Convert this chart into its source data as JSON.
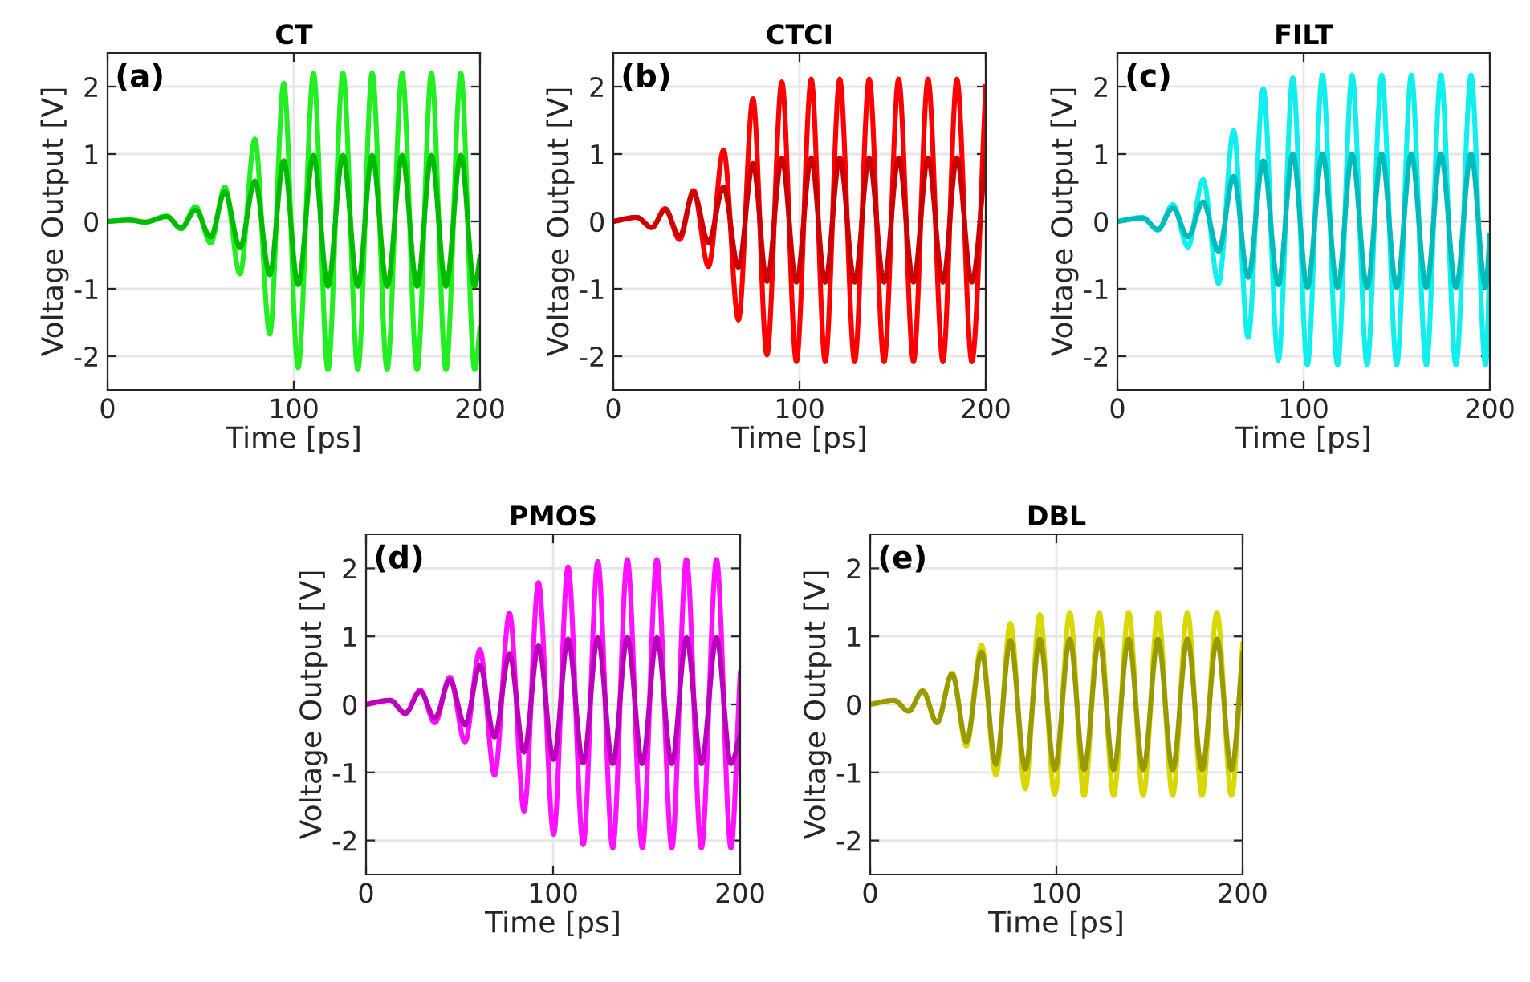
{
  "chart_data": [
    {
      "type": "line",
      "title": "CT",
      "xlabel": "Time [ps]",
      "ylabel": "Voltage Output [V]",
      "annotations": [
        "(a)"
      ],
      "xlim": [
        0,
        200
      ],
      "xticks": [
        0,
        100,
        200
      ],
      "ylim": [
        -2.5,
        2.5
      ],
      "yticks": [
        -2,
        -1,
        0,
        1,
        2
      ],
      "grid": true,
      "x": [
        0,
        12,
        20,
        31.8,
        39.5,
        47.3,
        55.3,
        63.0,
        71.1,
        79.1,
        87.1,
        94.6,
        102.3,
        110.6,
        118.3,
        126.4,
        134.4,
        142.1,
        150.1,
        158.2,
        166.2,
        173.9,
        181.7,
        189.7,
        197.1,
        200
      ],
      "series": [
        {
          "color": "#22ee22",
          "values": [
            0,
            0.02,
            -0.01,
            0.08,
            -0.11,
            0.22,
            -0.32,
            0.51,
            -0.78,
            1.22,
            -1.67,
            2.05,
            -2.17,
            2.2,
            -2.2,
            2.2,
            -2.2,
            2.2,
            -2.2,
            2.2,
            -2.2,
            2.2,
            -2.2,
            2.2,
            -2.2,
            -1.58
          ]
        },
        {
          "color": "#00bb00",
          "values": [
            0,
            0.02,
            -0.01,
            0.07,
            -0.1,
            0.17,
            -0.23,
            0.44,
            -0.39,
            0.6,
            -0.79,
            0.9,
            -0.94,
            0.98,
            -0.96,
            0.98,
            -0.96,
            0.98,
            -0.96,
            0.98,
            -0.96,
            0.98,
            -0.96,
            0.98,
            -0.96,
            -0.52
          ]
        }
      ]
    },
    {
      "type": "line",
      "title": "CTCI",
      "xlabel": "Time [ps]",
      "ylabel": "Voltage Output [V]",
      "annotations": [
        "(b)"
      ],
      "xlim": [
        0,
        200
      ],
      "xticks": [
        0,
        100,
        200
      ],
      "ylim": [
        -2.5,
        2.5
      ],
      "yticks": [
        -2,
        -1,
        0,
        1,
        2
      ],
      "grid": true,
      "x": [
        0,
        12.6,
        20.7,
        27.9,
        35.6,
        43.1,
        51.1,
        59.2,
        67.2,
        75.0,
        82.5,
        90.5,
        98.3,
        106.3,
        113.8,
        121.6,
        129.6,
        137.4,
        145.4,
        153.2,
        161.2,
        169.0,
        177.0,
        184.5,
        192.5,
        200
      ],
      "series": [
        {
          "color": "#ff0000",
          "values": [
            0,
            0.06,
            -0.09,
            0.19,
            -0.27,
            0.46,
            -0.67,
            1.06,
            -1.46,
            1.82,
            -1.98,
            2.07,
            -2.08,
            2.11,
            -2.08,
            2.11,
            -2.08,
            2.11,
            -2.08,
            2.11,
            -2.08,
            2.11,
            -2.08,
            2.11,
            -2.08,
            2.0
          ]
        },
        {
          "color": "#cc0000",
          "values": [
            0,
            0.06,
            -0.09,
            0.17,
            -0.22,
            0.43,
            -0.31,
            0.51,
            -0.68,
            0.86,
            -0.89,
            0.94,
            -0.9,
            0.94,
            -0.9,
            0.94,
            -0.9,
            0.94,
            -0.9,
            0.94,
            -0.9,
            0.94,
            -0.9,
            0.94,
            -0.9,
            0.96
          ]
        }
      ]
    },
    {
      "type": "line",
      "title": "FILT",
      "xlabel": "Time [ps]",
      "ylabel": "Voltage Output [V]",
      "annotations": [
        "(c)"
      ],
      "xlim": [
        0,
        200
      ],
      "xticks": [
        0,
        100,
        200
      ],
      "ylim": [
        -2.5,
        2.5
      ],
      "yticks": [
        -2,
        -1,
        0,
        1,
        2
      ],
      "grid": true,
      "x": [
        0,
        13.6,
        21.7,
        29.8,
        37.9,
        46.0,
        54.3,
        62.4,
        70.2,
        78.3,
        86.4,
        94.2,
        102.0,
        110.1,
        118.2,
        126.0,
        134.1,
        141.9,
        150.0,
        157.8,
        165.9,
        173.7,
        181.8,
        189.9,
        197.7,
        200
      ],
      "series": [
        {
          "color": "#11eeee",
          "values": [
            0,
            0.06,
            -0.13,
            0.25,
            -0.38,
            0.62,
            -0.92,
            1.35,
            -1.72,
            1.97,
            -2.06,
            2.13,
            -2.13,
            2.17,
            -2.13,
            2.17,
            -2.13,
            2.17,
            -2.13,
            2.17,
            -2.13,
            2.17,
            -2.13,
            2.17,
            -2.13,
            -0.59
          ]
        },
        {
          "color": "#00bbbb",
          "values": [
            0,
            0.05,
            -0.12,
            0.2,
            -0.23,
            0.29,
            -0.44,
            0.67,
            -0.83,
            0.9,
            -0.94,
            1.0,
            -0.98,
            1.0,
            -0.98,
            1.0,
            -0.98,
            1.0,
            -0.98,
            1.0,
            -0.98,
            1.0,
            -0.98,
            1.0,
            -0.98,
            -0.21
          ]
        }
      ]
    },
    {
      "type": "line",
      "title": "PMOS",
      "xlabel": "Time [ps]",
      "ylabel": "Voltage Output [V]",
      "annotations": [
        "(d)"
      ],
      "xlim": [
        0,
        200
      ],
      "xticks": [
        0,
        100,
        200
      ],
      "ylim": [
        -2.5,
        2.5
      ],
      "yticks": [
        -2,
        -1,
        0,
        1,
        2
      ],
      "grid": true,
      "x": [
        0,
        12.9,
        21.0,
        29.0,
        36.8,
        44.8,
        52.9,
        60.9,
        68.7,
        76.7,
        84.5,
        92.2,
        100.3,
        108.0,
        116.1,
        123.9,
        131.9,
        139.7,
        147.7,
        155.5,
        163.5,
        171.3,
        179.3,
        187.4,
        195.1,
        200
      ],
      "series": [
        {
          "color": "#ff11ff",
          "values": [
            0,
            0.06,
            -0.13,
            0.21,
            -0.27,
            0.4,
            -0.55,
            0.8,
            -1.04,
            1.34,
            -1.57,
            1.79,
            -1.91,
            2.02,
            -2.06,
            2.1,
            -2.11,
            2.13,
            -2.11,
            2.13,
            -2.11,
            2.13,
            -2.11,
            2.13,
            -2.11,
            0.46
          ]
        },
        {
          "color": "#bb00bb",
          "values": [
            0,
            0.06,
            -0.13,
            0.19,
            -0.2,
            0.36,
            -0.3,
            0.57,
            -0.48,
            0.74,
            -0.7,
            0.86,
            -0.81,
            0.96,
            -0.86,
            0.98,
            -0.87,
            0.98,
            -0.87,
            0.98,
            -0.87,
            0.98,
            -0.87,
            0.98,
            -0.87,
            -0.45
          ]
        }
      ]
    },
    {
      "type": "line",
      "title": "DBL",
      "xlabel": "Time [ps]",
      "ylabel": "Voltage Output [V]",
      "annotations": [
        "(e)"
      ],
      "xlim": [
        0,
        200
      ],
      "xticks": [
        0,
        100,
        200
      ],
      "ylim": [
        -2.5,
        2.5
      ],
      "yticks": [
        -2,
        -1,
        0,
        1,
        2
      ],
      "grid": true,
      "x": [
        0,
        12.9,
        20.7,
        28.2,
        35.9,
        44.0,
        51.7,
        59.8,
        67.5,
        75.3,
        83.3,
        91.1,
        99.1,
        107.2,
        114.9,
        123.0,
        130.7,
        138.8,
        146.6,
        154.6,
        162.4,
        170.4,
        178.2,
        186.2,
        194.0,
        200
      ],
      "series": [
        {
          "color": "#d8d800",
          "values": [
            0,
            0.06,
            -0.1,
            0.2,
            -0.27,
            0.46,
            -0.61,
            0.87,
            -1.04,
            1.19,
            -1.24,
            1.32,
            -1.32,
            1.35,
            -1.34,
            1.35,
            -1.34,
            1.35,
            -1.34,
            1.35,
            -1.34,
            1.35,
            -1.34,
            1.35,
            -1.34,
            0.89
          ]
        },
        {
          "color": "#999900",
          "values": [
            0,
            0.06,
            -0.1,
            0.2,
            -0.27,
            0.45,
            -0.55,
            0.77,
            -0.88,
            0.94,
            -0.95,
            0.96,
            -0.96,
            0.96,
            -0.96,
            0.96,
            -0.96,
            0.96,
            -0.96,
            0.96,
            -0.96,
            0.96,
            -0.96,
            0.96,
            -0.96,
            0.74
          ]
        }
      ]
    }
  ]
}
